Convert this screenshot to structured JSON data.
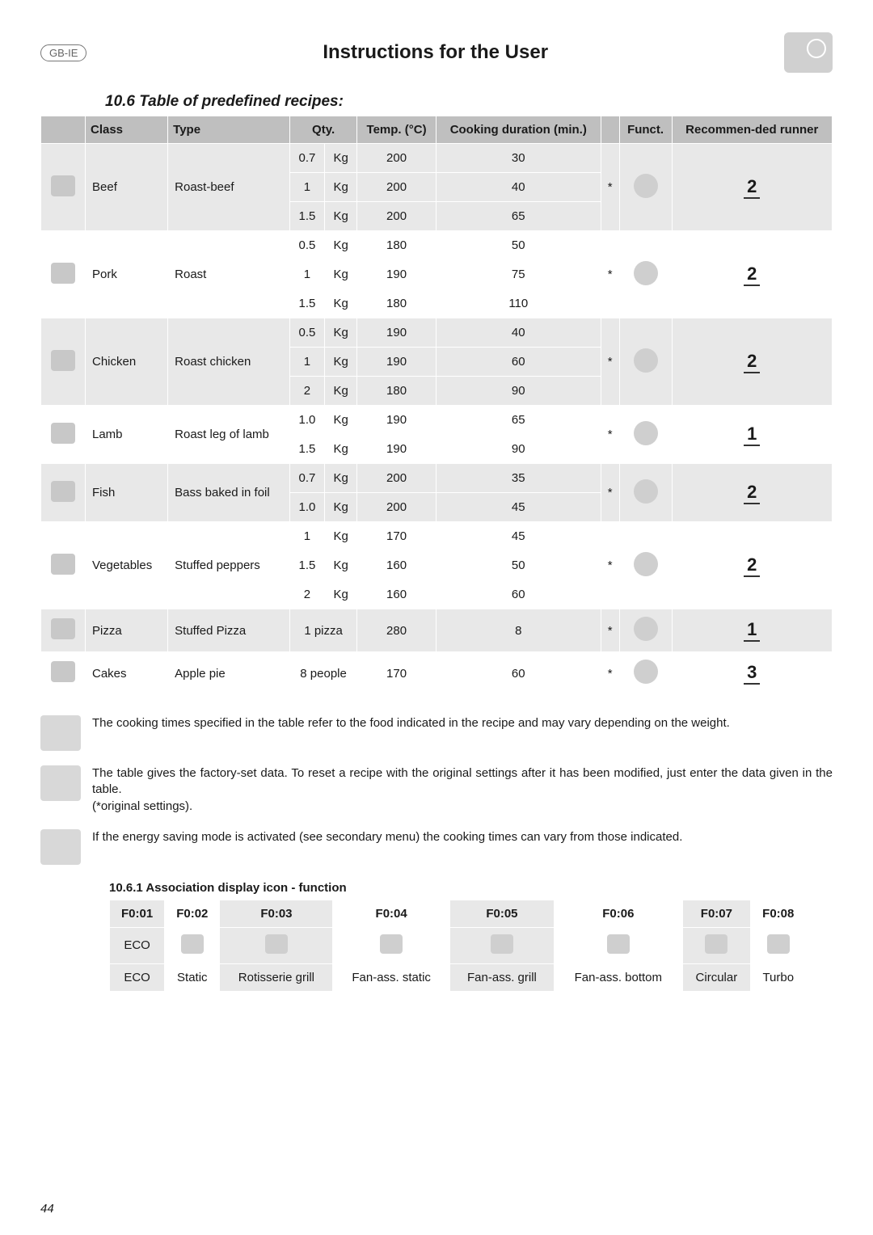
{
  "header": {
    "badge": "GB-IE",
    "title": "Instructions for the User"
  },
  "section": "10.6 Table of predefined recipes:",
  "cols": {
    "class": "Class",
    "type": "Type",
    "qty": "Qty.",
    "temp": "Temp. (°C)",
    "dur": "Cooking duration (min.)",
    "funct": "Funct.",
    "runner": "Recommen-ded runner"
  },
  "rows": [
    {
      "cls": "Beef",
      "type": "Roast-beef",
      "star": "*",
      "runner": "2",
      "sub": [
        [
          "0.7",
          "Kg",
          "200",
          "30"
        ],
        [
          "1",
          "Kg",
          "200",
          "40"
        ],
        [
          "1.5",
          "Kg",
          "200",
          "65"
        ]
      ],
      "shade": "a"
    },
    {
      "cls": "Pork",
      "type": "Roast",
      "star": "*",
      "runner": "2",
      "sub": [
        [
          "0.5",
          "Kg",
          "180",
          "50"
        ],
        [
          "1",
          "Kg",
          "190",
          "75"
        ],
        [
          "1.5",
          "Kg",
          "180",
          "110"
        ]
      ],
      "shade": "b"
    },
    {
      "cls": "Chicken",
      "type": "Roast chicken",
      "star": "*",
      "runner": "2",
      "sub": [
        [
          "0.5",
          "Kg",
          "190",
          "40"
        ],
        [
          "1",
          "Kg",
          "190",
          "60"
        ],
        [
          "2",
          "Kg",
          "180",
          "90"
        ]
      ],
      "shade": "a"
    },
    {
      "cls": "Lamb",
      "type": "Roast leg of lamb",
      "star": "*",
      "runner": "1",
      "sub": [
        [
          "1.0",
          "Kg",
          "190",
          "65"
        ],
        [
          "1.5",
          "Kg",
          "190",
          "90"
        ]
      ],
      "shade": "b"
    },
    {
      "cls": "Fish",
      "type": "Bass baked in foil",
      "star": "*",
      "runner": "2",
      "sub": [
        [
          "0.7",
          "Kg",
          "200",
          "35"
        ],
        [
          "1.0",
          "Kg",
          "200",
          "45"
        ]
      ],
      "shade": "a"
    },
    {
      "cls": "Vegetables",
      "type": "Stuffed peppers",
      "star": "*",
      "runner": "2",
      "sub": [
        [
          "1",
          "Kg",
          "170",
          "45"
        ],
        [
          "1.5",
          "Kg",
          "160",
          "50"
        ],
        [
          "2",
          "Kg",
          "160",
          "60"
        ]
      ],
      "shade": "b"
    },
    {
      "cls": "Pizza",
      "type": "Stuffed Pizza",
      "star": "*",
      "runner": "1",
      "qtySpan": "1 pizza",
      "sub": [
        [
          "",
          "",
          "280",
          "8"
        ]
      ],
      "shade": "a"
    },
    {
      "cls": "Cakes",
      "type": "Apple pie",
      "star": "*",
      "runner": "3",
      "qtySpan": "8 people",
      "sub": [
        [
          "",
          "",
          "170",
          "60"
        ]
      ],
      "shade": "b"
    }
  ],
  "notes": [
    "The cooking times specified in the table refer to the food indicated in the recipe and may vary depending on the weight.",
    "The table gives the factory-set data. To reset a recipe with the original settings after it has been modified, just enter the data given in the table.\n(*original settings).",
    "If the energy saving mode is activated (see secondary menu) the cooking times can vary from those indicated."
  ],
  "assocTitle": "10.6.1 Association display icon - function",
  "assoc": {
    "head": [
      "F0:01",
      "F0:02",
      "F0:03",
      "F0:04",
      "F0:05",
      "F0:06",
      "F0:07",
      "F0:08"
    ],
    "row1": [
      "ECO",
      "",
      "",
      "",
      "",
      "",
      "",
      ""
    ],
    "row2": [
      "ECO",
      "Static",
      "Rotisserie grill",
      "Fan-ass. static",
      "Fan-ass. grill",
      "Fan-ass. bottom",
      "Circular",
      "Turbo"
    ]
  },
  "page": "44"
}
